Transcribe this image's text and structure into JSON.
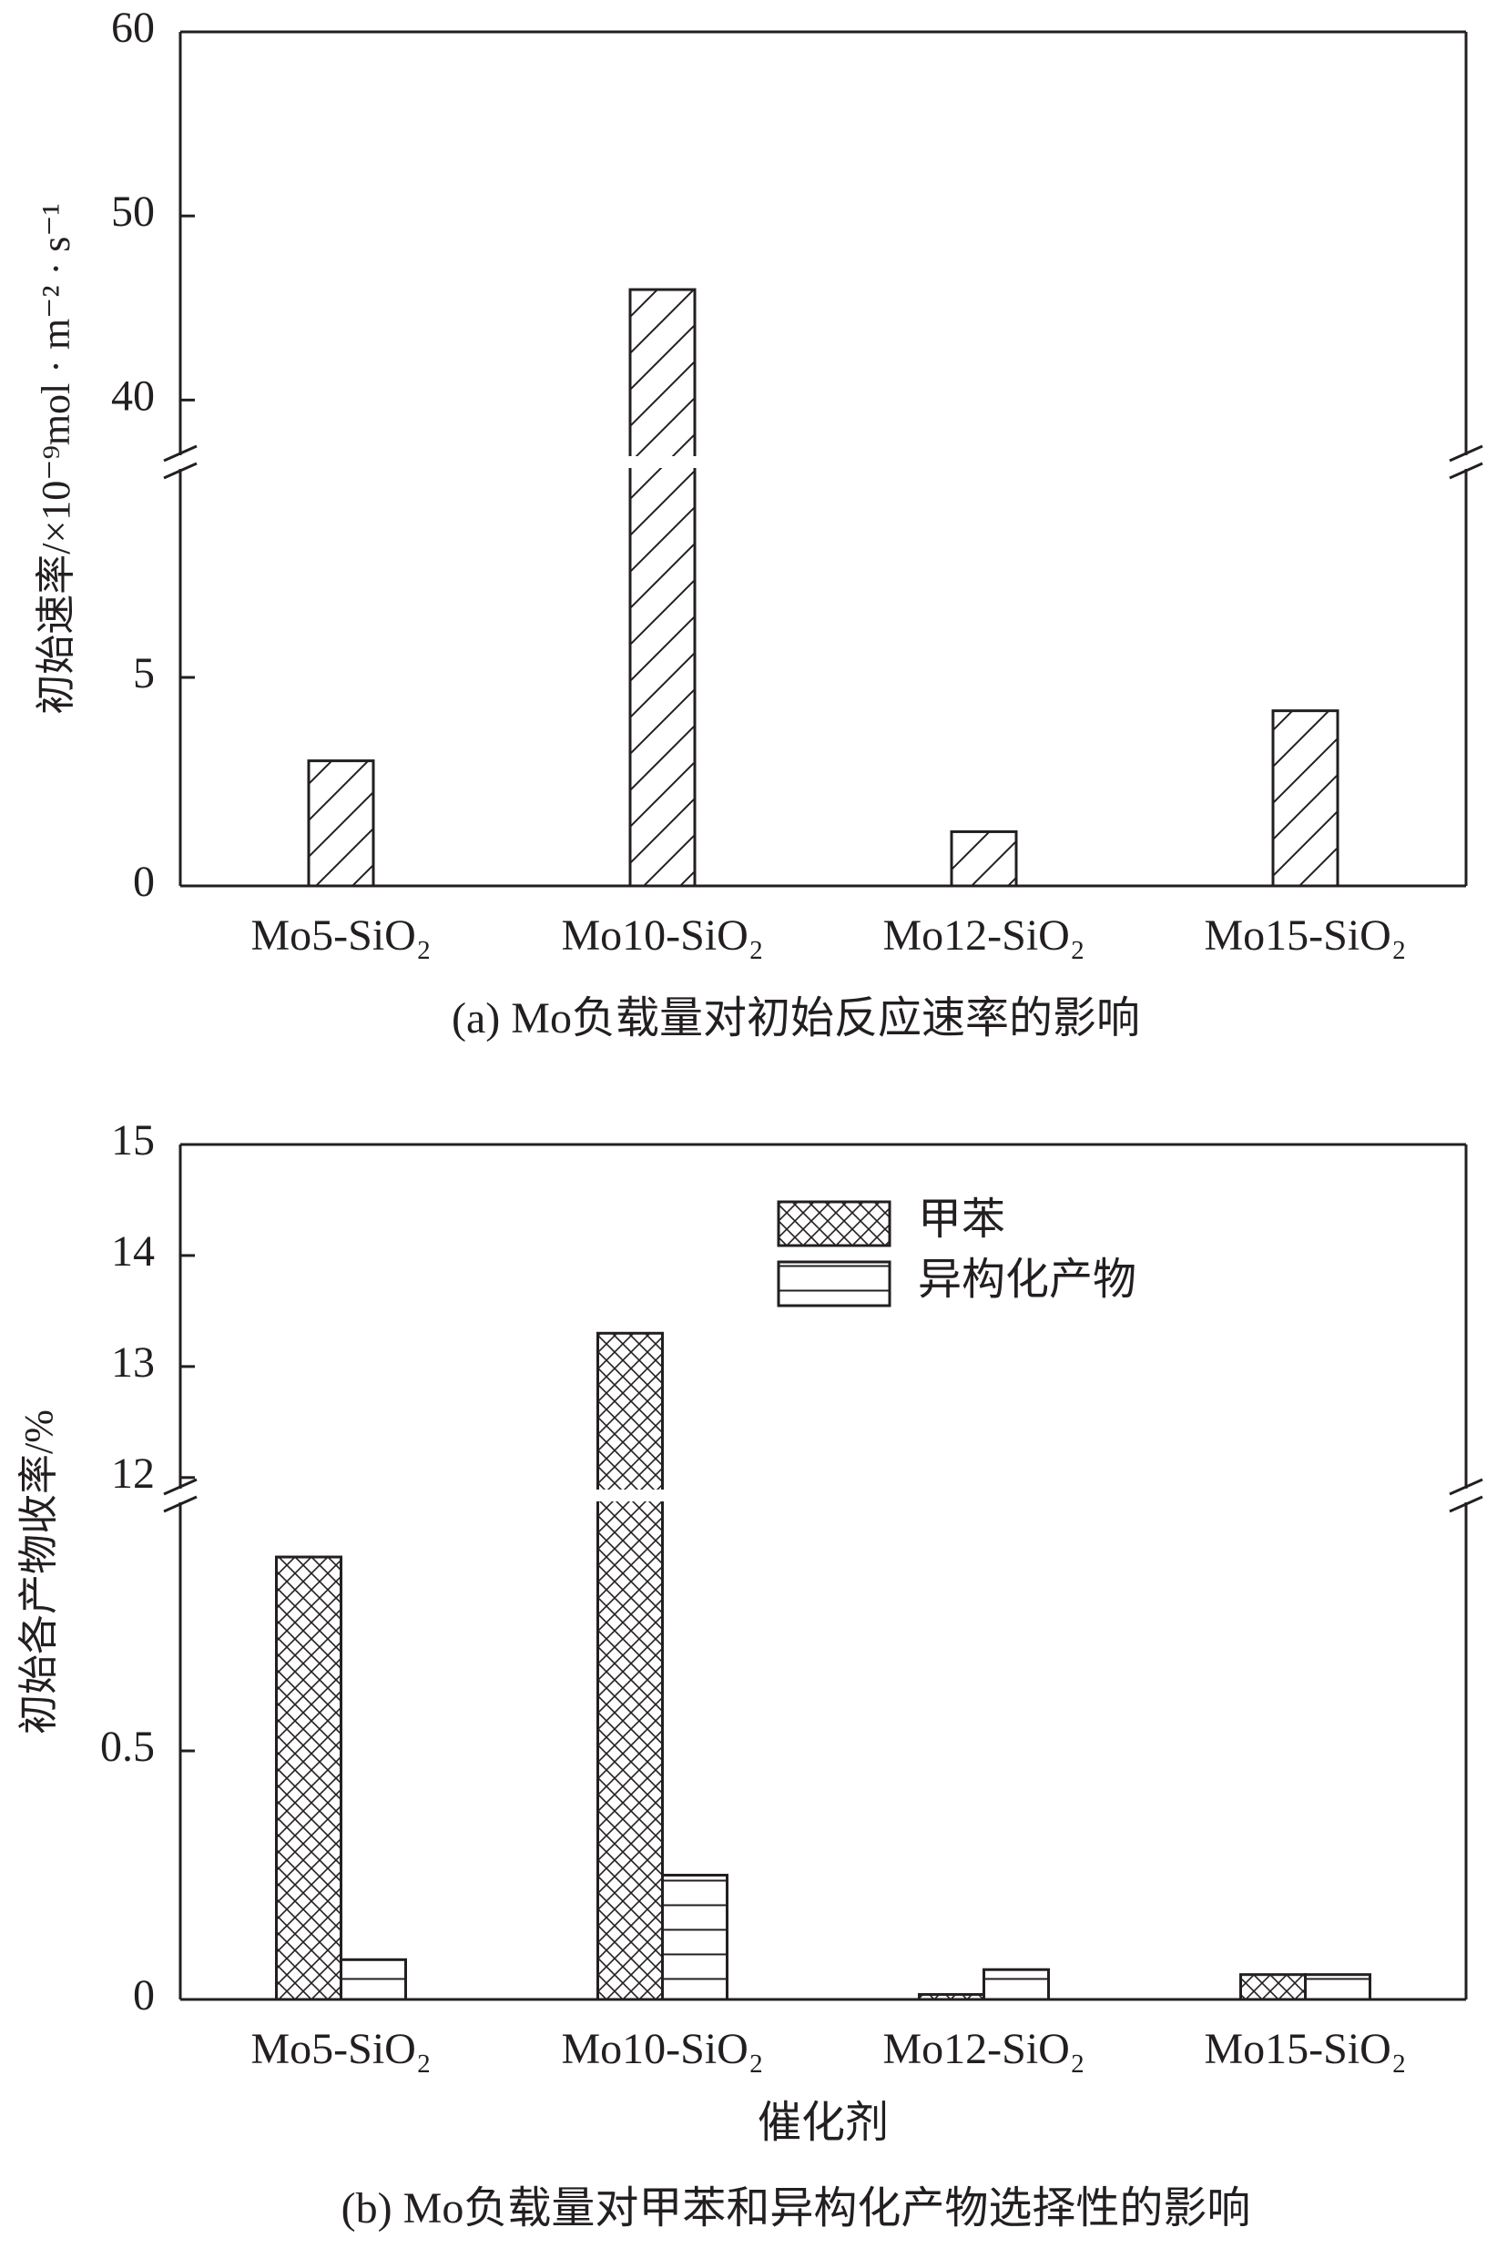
{
  "chart_data": [
    {
      "type": "bar",
      "ylabel": "初始速率/×10⁻⁹mol · m⁻² · s⁻¹",
      "caption": "(a) Mo负载量对初始反应速率的影响",
      "categories": [
        "Mo5-SiO₂",
        "Mo10-SiO₂",
        "Mo12-SiO₂",
        "Mo15-SiO₂"
      ],
      "values": [
        3.0,
        46,
        1.3,
        4.2
      ],
      "hatch": "diagonal",
      "ylim": [
        0,
        60
      ],
      "ybreak": [
        10,
        37
      ],
      "yticks": [
        0,
        5,
        40,
        50,
        60
      ]
    },
    {
      "type": "bar",
      "ylabel": "初始各产物收率/%",
      "xlabel": "催化剂",
      "caption": "(b) Mo负载量对甲苯和异构化产物选择性的影响",
      "categories": [
        "Mo5-SiO₂",
        "Mo10-SiO₂",
        "Mo12-SiO₂",
        "Mo15-SiO₂"
      ],
      "series": [
        {
          "name": "甲苯",
          "hatch": "crosshatch",
          "values": [
            0.89,
            13.3,
            0.01,
            0.05
          ]
        },
        {
          "name": "异构化产物",
          "hatch": "horizontal",
          "values": [
            0.08,
            0.25,
            0.06,
            0.05
          ]
        }
      ],
      "ylim": [
        0,
        15
      ],
      "ybreak": [
        1.0,
        11.9
      ],
      "yticks": [
        0,
        0.5,
        12,
        13,
        14,
        15
      ]
    }
  ]
}
